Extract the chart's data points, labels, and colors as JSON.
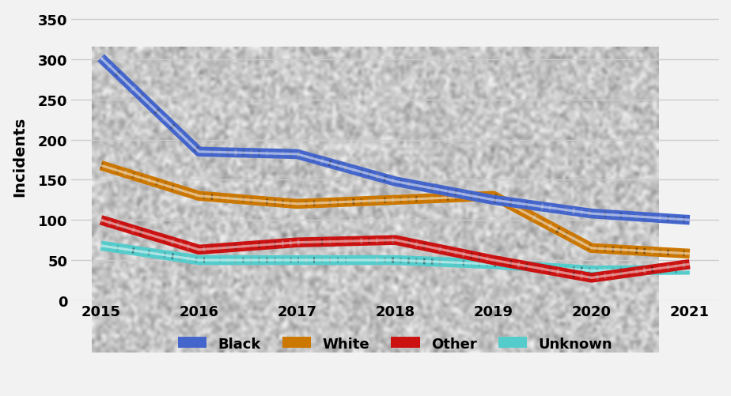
{
  "years": [
    2015,
    2016,
    2017,
    2018,
    2019,
    2020,
    2021
  ],
  "black": [
    302,
    185,
    182,
    148,
    125,
    108,
    100
  ],
  "white": [
    168,
    130,
    120,
    125,
    130,
    65,
    58
  ],
  "other": [
    100,
    63,
    72,
    75,
    50,
    28,
    45
  ],
  "unknown": [
    68,
    50,
    50,
    50,
    45,
    37,
    38
  ],
  "black_color": "#4466cc",
  "white_color": "#cc7700",
  "other_color": "#cc1111",
  "unknown_color": "#55cccc",
  "ylabel": "Incidents",
  "ylim": [
    0,
    360
  ],
  "yticks": [
    0,
    50,
    100,
    150,
    200,
    250,
    300,
    350
  ],
  "background_color": "#f0f0f0",
  "line_width": 9,
  "legend_labels": [
    "Black",
    "White",
    "Other",
    "Unknown"
  ]
}
